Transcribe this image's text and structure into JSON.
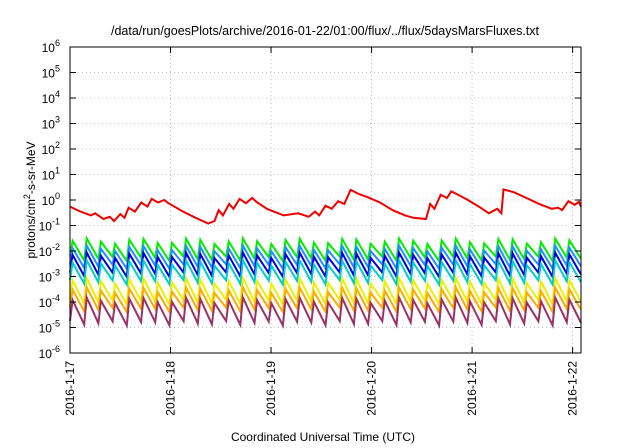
{
  "chart_data": {
    "type": "line",
    "title": "/data/run/goesPlots/archive/2016-01-22/01:00/flux/../flux/5daysMarsFluxes.txt",
    "xlabel": "Coordinated Universal Time (UTC)",
    "ylabel_parts": [
      "protons/cm",
      "2",
      "-s-sr-MeV"
    ],
    "y_scale": "log",
    "ylim": [
      1e-06,
      1000000.0
    ],
    "xlim": [
      "2016-01-17T00:00",
      "2016-01-22T02:00"
    ],
    "grid": true,
    "legend": "none",
    "x_ticks": [
      {
        "date": "2016-01-17",
        "label": "2016-1-17"
      },
      {
        "date": "2016-01-18",
        "label": "2016-1-18"
      },
      {
        "date": "2016-01-19",
        "label": "2016-1-19"
      },
      {
        "date": "2016-01-20",
        "label": "2016-1-20"
      },
      {
        "date": "2016-01-21",
        "label": "2016-1-21"
      },
      {
        "date": "2016-01-22",
        "label": "2016-1-22"
      }
    ],
    "y_ticks": [
      {
        "exp": "6"
      },
      {
        "exp": "5"
      },
      {
        "exp": "4"
      },
      {
        "exp": "3"
      },
      {
        "exp": "2"
      },
      {
        "exp": "1"
      },
      {
        "exp": "0"
      },
      {
        "exp": "-1"
      },
      {
        "exp": "-2"
      },
      {
        "exp": "-3"
      },
      {
        "exp": "-4"
      },
      {
        "exp": "-5"
      },
      {
        "exp": "-6"
      }
    ],
    "series": [
      {
        "color": "#ee0000",
        "width": 2,
        "points": [
          [
            "2016-01-17T00:00",
            0.55
          ],
          [
            "2016-01-17T02:30",
            0.35
          ],
          [
            "2016-01-17T05:00",
            0.25
          ],
          [
            "2016-01-17T06:00",
            0.3
          ],
          [
            "2016-01-17T08:00",
            0.18
          ],
          [
            "2016-01-17T09:30",
            0.22
          ],
          [
            "2016-01-17T10:30",
            0.15
          ],
          [
            "2016-01-17T12:00",
            0.28
          ],
          [
            "2016-01-17T13:00",
            0.2
          ],
          [
            "2016-01-17T14:00",
            0.5
          ],
          [
            "2016-01-17T15:30",
            0.35
          ],
          [
            "2016-01-17T17:00",
            0.8
          ],
          [
            "2016-01-17T18:30",
            0.55
          ],
          [
            "2016-01-17T19:30",
            1.1
          ],
          [
            "2016-01-17T21:00",
            0.8
          ],
          [
            "2016-01-17T22:30",
            1.0
          ],
          [
            "2016-01-17T23:30",
            0.75
          ],
          [
            "2016-01-18T03:00",
            0.35
          ],
          [
            "2016-01-18T06:00",
            0.2
          ],
          [
            "2016-01-18T09:00",
            0.12
          ],
          [
            "2016-01-18T10:30",
            0.15
          ],
          [
            "2016-01-18T11:30",
            0.4
          ],
          [
            "2016-01-18T12:30",
            0.25
          ],
          [
            "2016-01-18T14:00",
            0.7
          ],
          [
            "2016-01-18T15:00",
            0.45
          ],
          [
            "2016-01-18T16:30",
            1.1
          ],
          [
            "2016-01-18T18:00",
            0.75
          ],
          [
            "2016-01-18T19:30",
            1.2
          ],
          [
            "2016-01-18T20:30",
            0.85
          ],
          [
            "2016-01-18T23:00",
            0.45
          ],
          [
            "2016-01-19T03:00",
            0.25
          ],
          [
            "2016-01-19T06:30",
            0.3
          ],
          [
            "2016-01-19T09:00",
            0.22
          ],
          [
            "2016-01-19T10:30",
            0.35
          ],
          [
            "2016-01-19T11:30",
            0.25
          ],
          [
            "2016-01-19T13:00",
            0.6
          ],
          [
            "2016-01-19T14:30",
            0.45
          ],
          [
            "2016-01-19T16:00",
            0.9
          ],
          [
            "2016-01-19T17:30",
            0.7
          ],
          [
            "2016-01-19T19:00",
            2.5
          ],
          [
            "2016-01-19T21:00",
            1.7
          ],
          [
            "2016-01-19T23:00",
            1.3
          ],
          [
            "2016-01-20T02:00",
            0.8
          ],
          [
            "2016-01-20T05:00",
            0.4
          ],
          [
            "2016-01-20T08:00",
            0.25
          ],
          [
            "2016-01-20T10:00",
            0.2
          ],
          [
            "2016-01-20T13:00",
            0.18
          ],
          [
            "2016-01-20T14:00",
            0.7
          ],
          [
            "2016-01-20T15:00",
            0.45
          ],
          [
            "2016-01-20T16:30",
            1.6
          ],
          [
            "2016-01-20T18:00",
            1.2
          ],
          [
            "2016-01-20T19:00",
            2.2
          ],
          [
            "2016-01-20T21:00",
            1.5
          ],
          [
            "2016-01-20T23:00",
            1.0
          ],
          [
            "2016-01-21T02:00",
            0.5
          ],
          [
            "2016-01-21T04:00",
            0.3
          ],
          [
            "2016-01-21T06:00",
            0.45
          ],
          [
            "2016-01-21T07:00",
            0.3
          ],
          [
            "2016-01-21T07:30",
            2.6
          ],
          [
            "2016-01-21T10:00",
            2.0
          ],
          [
            "2016-01-21T13:00",
            1.2
          ],
          [
            "2016-01-21T16:00",
            0.7
          ],
          [
            "2016-01-21T19:00",
            0.45
          ],
          [
            "2016-01-21T20:30",
            0.5
          ],
          [
            "2016-01-21T21:30",
            0.4
          ],
          [
            "2016-01-21T23:00",
            0.9
          ],
          [
            "2016-01-22T00:30",
            0.65
          ],
          [
            "2016-01-22T01:30",
            0.85
          ],
          [
            "2016-01-22T02:00",
            0.55
          ]
        ]
      },
      {
        "color": "#00ee00",
        "width": 2,
        "cycles": 36,
        "low": 0.005,
        "high": 0.025
      },
      {
        "color": "#1e90ff",
        "width": 2,
        "cycles": 36,
        "low": 0.0025,
        "high": 0.013
      },
      {
        "color": "#0000dd",
        "width": 2,
        "cycles": 36,
        "low": 0.0012,
        "high": 0.007
      },
      {
        "color": "#00cdcd",
        "width": 2,
        "cycles": 36,
        "low": 0.0006,
        "high": 0.0035
      },
      {
        "color": "#eeee00",
        "width": 2,
        "cycles": 36,
        "low": 0.0001,
        "high": 0.0007
      },
      {
        "color": "#ffaa00",
        "width": 2,
        "cycles": 36,
        "low": 5e-05,
        "high": 0.0003
      },
      {
        "color": "#993366",
        "width": 2,
        "cycles": 36,
        "low": 1.5e-05,
        "high": 0.00012
      }
    ]
  }
}
